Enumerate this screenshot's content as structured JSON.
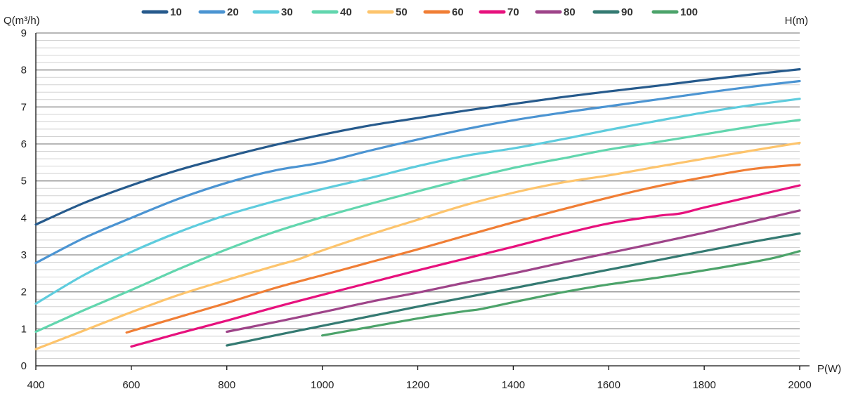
{
  "chart_data": {
    "type": "line",
    "xlabel": "P(W)",
    "ylabel": "Q(m³/h)",
    "y2label": "H(m)",
    "xlim": [
      400,
      2000
    ],
    "ylim": [
      0,
      9
    ],
    "x_ticks": [
      400,
      600,
      800,
      1000,
      1200,
      1400,
      1600,
      1800,
      2000
    ],
    "y_ticks": [
      0,
      1,
      2,
      3,
      4,
      5,
      6,
      7,
      8,
      9
    ],
    "grid": "horizontal",
    "legend_position": "top",
    "series": [
      {
        "name": "10",
        "color": "#265A8C",
        "x": [
          400,
          500,
          600,
          700,
          800,
          900,
          1000,
          1100,
          1200,
          1300,
          1400,
          1500,
          1600,
          1700,
          1800,
          1900,
          2000
        ],
        "y": [
          3.82,
          4.4,
          4.88,
          5.3,
          5.65,
          5.97,
          6.25,
          6.5,
          6.7,
          6.9,
          7.08,
          7.26,
          7.42,
          7.57,
          7.73,
          7.88,
          8.02
        ]
      },
      {
        "name": "20",
        "color": "#4B94D2",
        "x": [
          400,
          500,
          600,
          700,
          800,
          900,
          1000,
          1100,
          1200,
          1300,
          1400,
          1500,
          1600,
          1700,
          1800,
          1900,
          2000
        ],
        "y": [
          2.78,
          3.45,
          4.0,
          4.52,
          4.95,
          5.28,
          5.5,
          5.82,
          6.12,
          6.4,
          6.64,
          6.84,
          7.02,
          7.2,
          7.38,
          7.55,
          7.7
        ]
      },
      {
        "name": "30",
        "color": "#5ECCDD",
        "x": [
          400,
          500,
          600,
          700,
          800,
          900,
          1000,
          1100,
          1200,
          1300,
          1400,
          1500,
          1600,
          1700,
          1800,
          1900,
          2000
        ],
        "y": [
          1.68,
          2.45,
          3.08,
          3.62,
          4.08,
          4.45,
          4.78,
          5.08,
          5.4,
          5.68,
          5.88,
          6.12,
          6.38,
          6.62,
          6.85,
          7.05,
          7.22
        ]
      },
      {
        "name": "40",
        "color": "#62D6AE",
        "x": [
          400,
          500,
          600,
          700,
          800,
          900,
          1000,
          1100,
          1200,
          1300,
          1400,
          1450,
          1500,
          1600,
          1700,
          1800,
          1900,
          2000
        ],
        "y": [
          0.92,
          1.5,
          2.05,
          2.62,
          3.15,
          3.62,
          4.02,
          4.38,
          4.72,
          5.05,
          5.35,
          5.48,
          5.6,
          5.85,
          6.05,
          6.26,
          6.47,
          6.65
        ]
      },
      {
        "name": "50",
        "color": "#FDC46C",
        "x": [
          400,
          500,
          600,
          700,
          800,
          900,
          950,
          1000,
          1100,
          1200,
          1300,
          1400,
          1500,
          1600,
          1700,
          1800,
          1900,
          2000
        ],
        "y": [
          0.45,
          0.95,
          1.45,
          1.92,
          2.32,
          2.7,
          2.88,
          3.12,
          3.55,
          3.95,
          4.35,
          4.68,
          4.95,
          5.15,
          5.38,
          5.6,
          5.82,
          6.03
        ]
      },
      {
        "name": "60",
        "color": "#F07E35",
        "x": [
          590,
          700,
          800,
          900,
          1000,
          1100,
          1200,
          1300,
          1400,
          1500,
          1600,
          1700,
          1800,
          1900,
          2000
        ],
        "y": [
          0.9,
          1.32,
          1.7,
          2.1,
          2.45,
          2.8,
          3.15,
          3.52,
          3.88,
          4.22,
          4.55,
          4.85,
          5.1,
          5.32,
          5.44
        ]
      },
      {
        "name": "70",
        "color": "#E7117D",
        "x": [
          600,
          700,
          800,
          900,
          1000,
          1100,
          1200,
          1300,
          1400,
          1500,
          1600,
          1700,
          1750,
          1800,
          1900,
          2000
        ],
        "y": [
          0.52,
          0.88,
          1.22,
          1.58,
          1.92,
          2.25,
          2.58,
          2.9,
          3.22,
          3.55,
          3.85,
          4.05,
          4.12,
          4.28,
          4.58,
          4.88
        ]
      },
      {
        "name": "80",
        "color": "#9E4489",
        "x": [
          800,
          900,
          1000,
          1100,
          1200,
          1300,
          1400,
          1500,
          1600,
          1700,
          1800,
          1900,
          2000
        ],
        "y": [
          0.92,
          1.18,
          1.45,
          1.73,
          1.98,
          2.25,
          2.5,
          2.78,
          3.05,
          3.32,
          3.6,
          3.9,
          4.2
        ]
      },
      {
        "name": "90",
        "color": "#347A72",
        "x": [
          800,
          900,
          1000,
          1100,
          1200,
          1300,
          1400,
          1500,
          1600,
          1700,
          1800,
          1900,
          2000
        ],
        "y": [
          0.55,
          0.82,
          1.08,
          1.34,
          1.6,
          1.85,
          2.1,
          2.35,
          2.6,
          2.85,
          3.1,
          3.35,
          3.58
        ]
      },
      {
        "name": "100",
        "color": "#4CA36A",
        "x": [
          1000,
          1100,
          1200,
          1300,
          1330,
          1400,
          1500,
          1600,
          1700,
          1800,
          1900,
          1950,
          2000
        ],
        "y": [
          0.82,
          1.05,
          1.28,
          1.48,
          1.53,
          1.72,
          1.98,
          2.2,
          2.38,
          2.58,
          2.8,
          2.93,
          3.1
        ]
      }
    ]
  }
}
